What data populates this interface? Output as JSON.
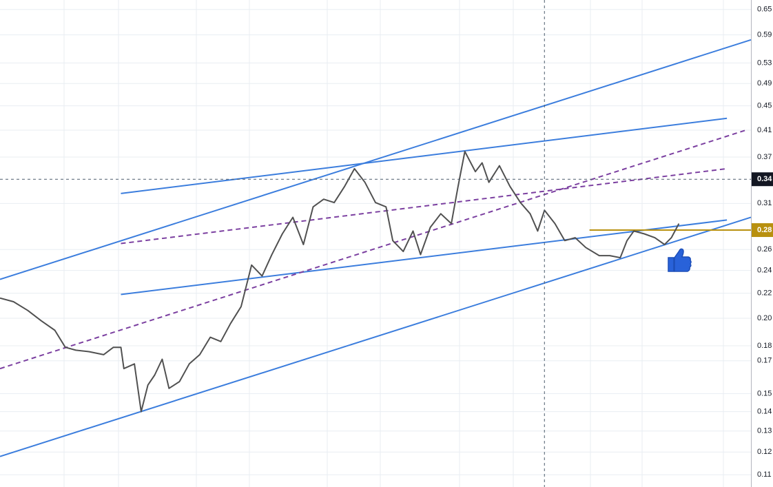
{
  "chart_data": {
    "type": "line",
    "log_scale": true,
    "grid": true,
    "xlim": [
      0,
      100
    ],
    "ylim": [
      0.105,
      0.674
    ],
    "yticks": [
      0.65,
      0.59,
      0.53,
      0.49,
      0.45,
      0.41,
      0.37,
      0.31,
      0.26,
      0.24,
      0.22,
      {
        "value": 0.2,
        "label": "0.20"
      },
      0.18,
      0.17,
      0.15,
      0.14,
      0.13,
      0.12,
      0.11
    ],
    "x": [
      0,
      1.8,
      3.7,
      5.5,
      7.3,
      8.7,
      10.1,
      11.9,
      13.8,
      15.1,
      16.1,
      16.5,
      17.9,
      18.8,
      19.7,
      20.6,
      21.6,
      22.5,
      23.9,
      25.2,
      26.6,
      28,
      29.4,
      30.7,
      32.1,
      33.5,
      34.9,
      36.2,
      37.6,
      39,
      40.4,
      41.7,
      43.1,
      44.5,
      45.9,
      47.2,
      48.6,
      50,
      51.4,
      52.3,
      53.7,
      55,
      56,
      57.3,
      58.7,
      60.1,
      61,
      61.9,
      63.3,
      64.2,
      65.1,
      66.5,
      67.9,
      69.3,
      70.6,
      71.6,
      72.5,
      73.9,
      75.2,
      76.6,
      78,
      79.8,
      81.2,
      82.6,
      83.5,
      84.4,
      85.8,
      87.2,
      88.5,
      89.4,
      90.4
    ],
    "series": [
      {
        "color": "#505050",
        "values": [
          0.216,
          0.213,
          0.206,
          0.198,
          0.191,
          0.179,
          0.177,
          0.176,
          0.174,
          0.179,
          0.179,
          0.165,
          0.168,
          0.14,
          0.155,
          0.161,
          0.171,
          0.153,
          0.157,
          0.168,
          0.174,
          0.186,
          0.183,
          0.196,
          0.209,
          0.245,
          0.235,
          0.255,
          0.276,
          0.294,
          0.265,
          0.306,
          0.315,
          0.311,
          0.331,
          0.354,
          0.336,
          0.311,
          0.306,
          0.269,
          0.258,
          0.279,
          0.255,
          0.283,
          0.298,
          0.287,
          0.331,
          0.378,
          0.35,
          0.362,
          0.336,
          0.358,
          0.331,
          0.311,
          0.298,
          0.279,
          0.302,
          0.287,
          0.269,
          0.272,
          0.262,
          0.254,
          0.254,
          0.252,
          0.269,
          0.279,
          0.276,
          0.272,
          0.265,
          0.272,
          0.287
        ]
      }
    ],
    "trendlines": [
      {
        "color": "#3b7ddd",
        "dash": false,
        "x": [
          0,
          100
        ],
        "values": [
          0.232,
          0.579
        ]
      },
      {
        "color": "#3b7ddd",
        "dash": false,
        "x": [
          0,
          100
        ],
        "values": [
          0.118,
          0.294
        ]
      },
      {
        "color": "#3b7ddd",
        "dash": false,
        "x": [
          16.1,
          96.8
        ],
        "values": [
          0.322,
          0.429
        ]
      },
      {
        "color": "#3b7ddd",
        "dash": false,
        "x": [
          16.1,
          96.8
        ],
        "values": [
          0.219,
          0.291
        ]
      },
      {
        "color": "#7b3fa0",
        "dash": true,
        "x": [
          0,
          99.3
        ],
        "values": [
          0.165,
          0.41
        ]
      },
      {
        "color": "#7b3fa0",
        "dash": true,
        "x": [
          16.1,
          96.8
        ],
        "values": [
          0.266,
          0.354
        ]
      },
      {
        "color": "#b8900f",
        "dash": false,
        "x": [
          78.5,
          100
        ],
        "values": [
          0.28,
          0.28
        ]
      }
    ],
    "crosshair": {
      "x": 72.5,
      "y": 0.34
    },
    "last_price": {
      "value": 0.28,
      "color": "#b8900f"
    }
  }
}
